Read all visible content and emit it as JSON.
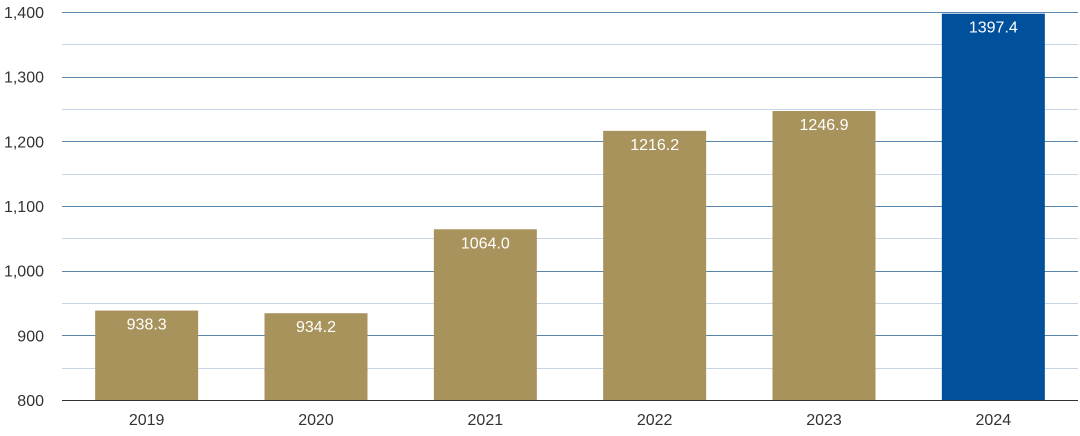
{
  "chart_data": {
    "type": "bar",
    "categories": [
      "2019",
      "2020",
      "2021",
      "2022",
      "2023",
      "2024"
    ],
    "values": [
      938.3,
      934.2,
      1064.0,
      1216.2,
      1246.9,
      1397.4
    ],
    "value_labels": [
      "938.3",
      "934.2",
      "1064.0",
      "1216.2",
      "1246.9",
      "1397.4"
    ],
    "y_ticks": [
      800,
      900,
      1000,
      1100,
      1200,
      1300,
      1400
    ],
    "y_tick_labels": [
      "800",
      "900",
      "1,000",
      "1,100",
      "1,200",
      "1,300",
      "1,400"
    ],
    "ylim": [
      800,
      1400
    ],
    "minor_gridlines": true,
    "grid": true,
    "legend": "none",
    "title": "",
    "xlabel": "",
    "ylabel": "",
    "colors": {
      "bar": "#A8935C",
      "highlight_bar": "#00509C",
      "highlight_category": "2024",
      "major_grid": "#5B86AE",
      "minor_grid": "#C6D6E6",
      "axis": "#333333"
    }
  }
}
